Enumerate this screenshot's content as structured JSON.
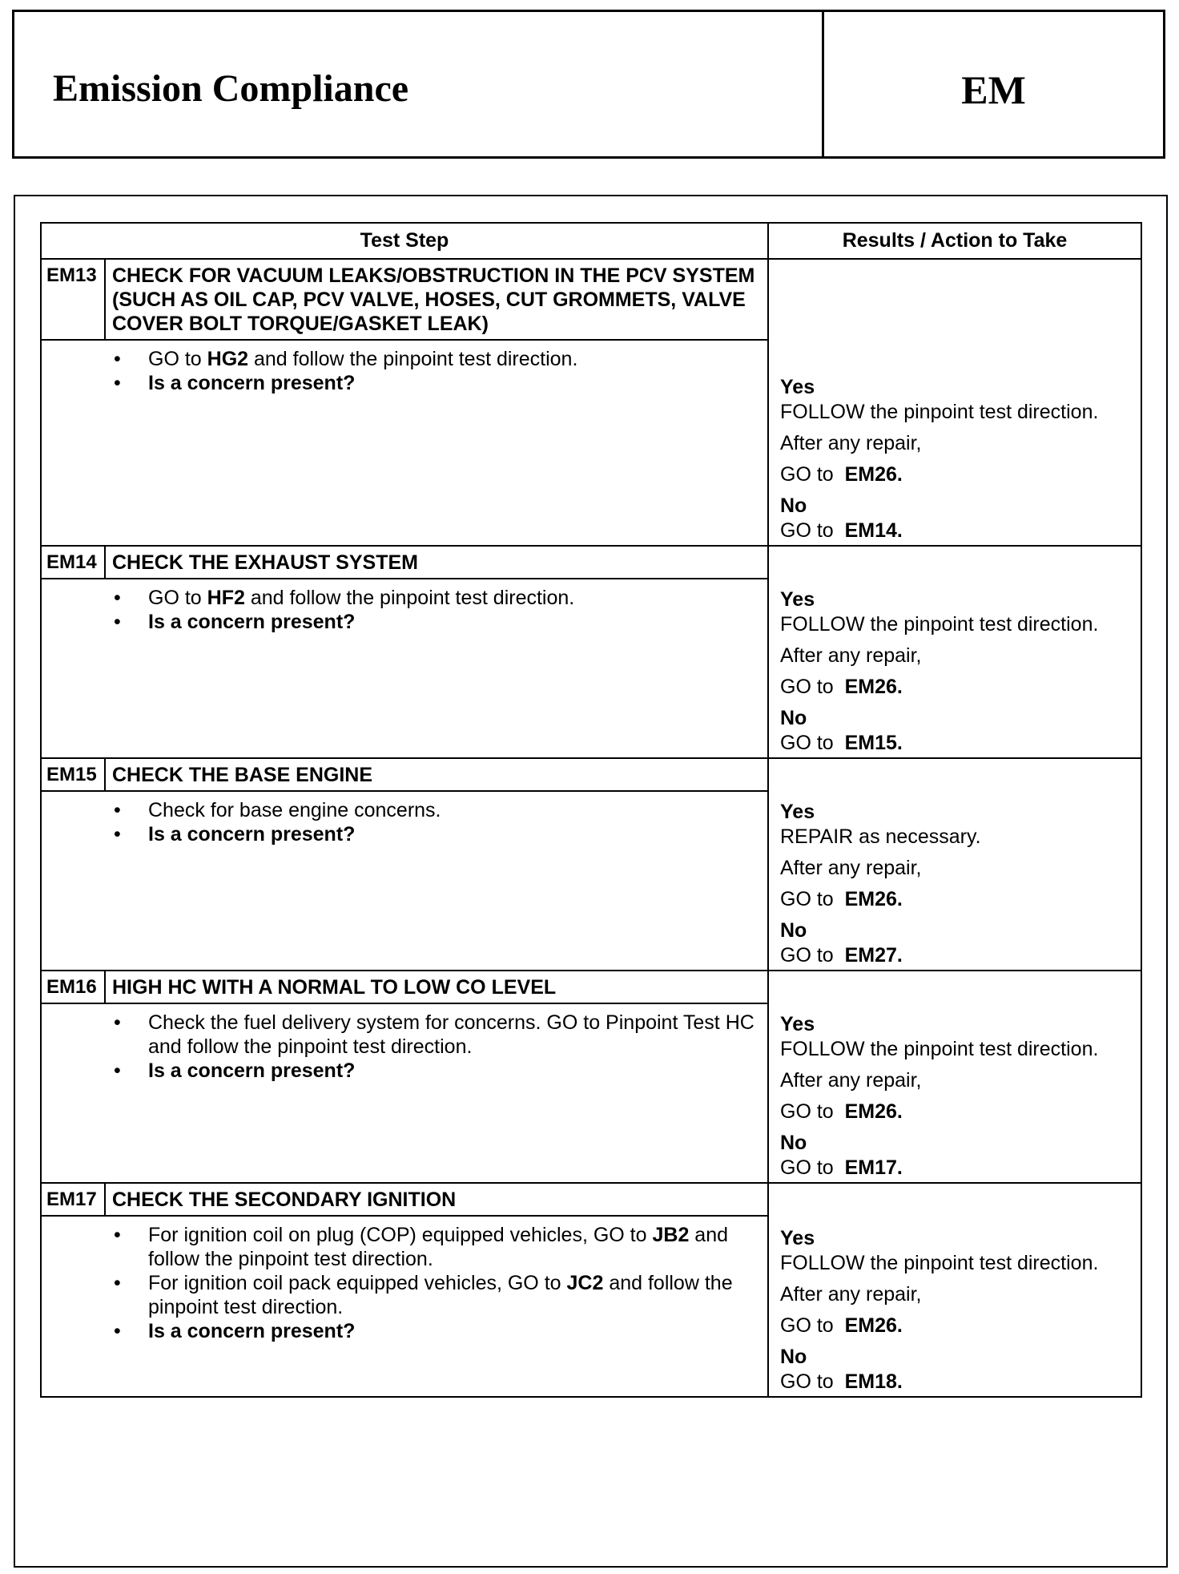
{
  "header": {
    "title": "Emission Compliance",
    "section_code": "EM"
  },
  "table": {
    "col_test_step": "Test Step",
    "col_results": "Results / Action to Take",
    "rows": [
      {
        "id": "EM13",
        "title": "CHECK FOR VACUUM LEAKS/OBSTRUCTION IN THE PCV SYSTEM (SUCH AS OIL CAP, PCV VALVE, HOSES, CUT GROMMETS, VALVE COVER BOLT TORQUE/GASKET LEAK)",
        "bullets": [
          [
            {
              "t": "GO to "
            },
            {
              "t": "HG2",
              "b": true
            },
            {
              "t": " and follow the pinpoint test direction."
            }
          ],
          [
            {
              "t": "Is a concern present?",
              "b": true
            }
          ]
        ],
        "yes": {
          "label": "Yes",
          "action": "FOLLOW the pinpoint test direction.",
          "after": "After any repair,",
          "go": "GO to",
          "target": "EM26."
        },
        "no": {
          "label": "No",
          "go": "GO to",
          "target": "EM14."
        }
      },
      {
        "id": "EM14",
        "title": "CHECK THE EXHAUST SYSTEM",
        "bullets": [
          [
            {
              "t": "GO to "
            },
            {
              "t": "HF2",
              "b": true
            },
            {
              "t": " and follow the pinpoint test direction."
            }
          ],
          [
            {
              "t": "Is a concern present?",
              "b": true
            }
          ]
        ],
        "yes": {
          "label": "Yes",
          "action": "FOLLOW the pinpoint test direction.",
          "after": "After any repair,",
          "go": "GO to",
          "target": "EM26."
        },
        "no": {
          "label": "No",
          "go": "GO to",
          "target": "EM15."
        }
      },
      {
        "id": "EM15",
        "title": "CHECK THE BASE ENGINE",
        "bullets": [
          [
            {
              "t": "Check for base engine concerns."
            }
          ],
          [
            {
              "t": "Is a concern present?",
              "b": true
            }
          ]
        ],
        "yes": {
          "label": "Yes",
          "action": "REPAIR as necessary.",
          "after": "After any repair,",
          "go": "GO to",
          "target": "EM26."
        },
        "no": {
          "label": "No",
          "go": "GO to",
          "target": "EM27."
        }
      },
      {
        "id": "EM16",
        "title": "HIGH HC WITH A NORMAL TO LOW CO LEVEL",
        "bullets": [
          [
            {
              "t": "Check the fuel delivery system for concerns. GO to Pinpoint Test HC and follow the pinpoint test direction."
            }
          ],
          [
            {
              "t": "Is a concern present?",
              "b": true
            }
          ]
        ],
        "yes": {
          "label": "Yes",
          "action": "FOLLOW the pinpoint test direction.",
          "after": "After any repair,",
          "go": "GO to",
          "target": "EM26."
        },
        "no": {
          "label": "No",
          "go": "GO to",
          "target": "EM17."
        }
      },
      {
        "id": "EM17",
        "title": "CHECK THE SECONDARY IGNITION",
        "bullets": [
          [
            {
              "t": "For ignition coil on plug (COP) equipped vehicles, GO to "
            },
            {
              "t": "JB2",
              "b": true
            },
            {
              "t": " and follow the pinpoint test direction."
            }
          ],
          [
            {
              "t": "For ignition coil pack equipped vehicles, GO to "
            },
            {
              "t": "JC2",
              "b": true
            },
            {
              "t": " and follow the pinpoint test direction."
            }
          ],
          [
            {
              "t": "Is a concern present?",
              "b": true
            }
          ]
        ],
        "yes": {
          "label": "Yes",
          "action": "FOLLOW the pinpoint test direction.",
          "after": "After any repair,",
          "go": "GO to",
          "target": "EM26."
        },
        "no": {
          "label": "No",
          "go": "GO to",
          "target": "EM18."
        }
      }
    ]
  }
}
